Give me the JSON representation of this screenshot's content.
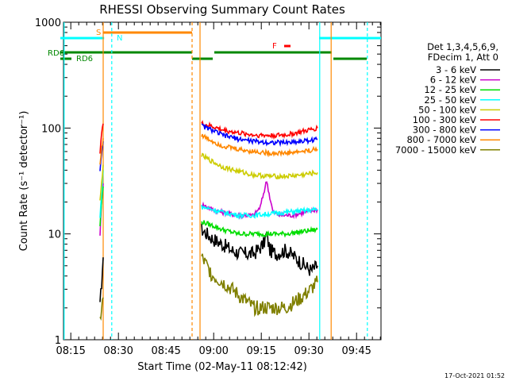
{
  "chart_data": {
    "type": "line",
    "title": "RHESSI Observing Summary Count Rates",
    "xlabel": "Start Time (02-May-11 08:12:42)",
    "ylabel": "Count Rate (s⁻¹ detector⁻¹)",
    "yscale": "log",
    "ylim": [
      1,
      1000
    ],
    "xlim_minutes": [
      0,
      100
    ],
    "x_ticks": [
      {
        "label": "08:15",
        "t": 2.3
      },
      {
        "label": "08:30",
        "t": 17.3
      },
      {
        "label": "08:45",
        "t": 32.3
      },
      {
        "label": "09:00",
        "t": 47.3
      },
      {
        "label": "09:15",
        "t": 62.3
      },
      {
        "label": "09:30",
        "t": 77.3
      },
      {
        "label": "09:45",
        "t": 92.3
      }
    ],
    "y_ticks": [
      {
        "label": "1",
        "v": 1
      },
      {
        "label": "10",
        "v": 10
      },
      {
        "label": "100",
        "v": 100
      },
      {
        "label": "1000",
        "v": 1000
      }
    ],
    "legend": {
      "header": [
        "Det 1,3,4,5,6,9,",
        "FDecim 1, Att 0"
      ],
      "position": "right"
    },
    "series": [
      {
        "name": "3 - 6 keV",
        "color": "#000000",
        "seg1": {
          "t": [
            11.5,
            12.0,
            12.5
          ],
          "v": [
            2.0,
            3.5,
            6.0
          ]
        },
        "seg2": {
          "t": [
            43.5,
            47,
            50,
            53,
            56,
            60,
            63,
            64,
            65,
            67,
            70,
            73,
            76,
            78,
            80
          ],
          "v": [
            11,
            9,
            8,
            7,
            6.5,
            6.5,
            8,
            10,
            7,
            6.5,
            7,
            6,
            5,
            4.5,
            5
          ]
        }
      },
      {
        "name": "6 - 12 keV",
        "color": "#cc00cc",
        "seg1": {
          "t": [
            11.5,
            12.0,
            12.5
          ],
          "v": [
            10,
            20,
            30
          ]
        },
        "seg2": {
          "t": [
            43.5,
            47,
            50,
            55,
            60,
            62,
            64,
            65,
            66,
            68,
            72,
            76,
            80
          ],
          "v": [
            19,
            17,
            16,
            15,
            15,
            18,
            32,
            22,
            16,
            15,
            15,
            16,
            17
          ]
        }
      },
      {
        "name": "12 - 25 keV",
        "color": "#00dd00",
        "seg1": {
          "t": [
            11.5,
            12.0,
            12.5
          ],
          "v": [
            12,
            20,
            28
          ]
        },
        "seg2": {
          "t": [
            43.5,
            47,
            50,
            55,
            60,
            65,
            70,
            75,
            80
          ],
          "v": [
            13,
            12,
            11,
            10,
            10,
            10,
            10,
            10.5,
            11
          ]
        }
      },
      {
        "name": "25 - 50 keV",
        "color": "#00ffff",
        "seg1": {
          "t": [
            11.5,
            12.0,
            12.5
          ],
          "v": [
            14,
            25,
            40
          ]
        },
        "seg2": {
          "t": [
            43.5,
            47,
            50,
            55,
            60,
            65,
            70,
            75,
            80
          ],
          "v": [
            18,
            17,
            16,
            15,
            15,
            15.5,
            16,
            16.5,
            17
          ]
        }
      },
      {
        "name": "50 - 100 keV",
        "color": "#cccc00",
        "seg1": {
          "t": [
            11.5,
            12.0,
            12.5
          ],
          "v": [
            20,
            30,
            45
          ]
        },
        "seg2": {
          "t": [
            43.5,
            47,
            50,
            55,
            60,
            65,
            70,
            75,
            80
          ],
          "v": [
            55,
            48,
            43,
            39,
            36,
            35,
            35,
            36,
            38
          ]
        }
      },
      {
        "name": "100 - 300 keV",
        "color": "#ff0000",
        "seg1": {
          "t": [
            11.5,
            12.0,
            12.5
          ],
          "v": [
            60,
            90,
            110
          ]
        },
        "seg2": {
          "t": [
            43.5,
            47,
            50,
            55,
            60,
            65,
            70,
            75,
            80
          ],
          "v": [
            110,
            103,
            96,
            90,
            86,
            85,
            86,
            92,
            100
          ]
        }
      },
      {
        "name": "300 - 800 keV",
        "color": "#0000ff",
        "seg1": {
          "t": [
            11.5,
            12.0,
            12.5
          ],
          "v": [
            40,
            60,
            75
          ]
        },
        "seg2": {
          "t": [
            43.5,
            47,
            50,
            55,
            60,
            65,
            70,
            75,
            80
          ],
          "v": [
            105,
            95,
            86,
            79,
            75,
            73,
            73,
            75,
            78
          ]
        }
      },
      {
        "name": "800 - 7000 keV",
        "color": "#ff8800",
        "seg1": {
          "t": [
            11.5,
            12.0,
            12.5
          ],
          "v": [
            45,
            65,
            80
          ]
        },
        "seg2": {
          "t": [
            43.5,
            47,
            50,
            55,
            60,
            65,
            70,
            75,
            80
          ],
          "v": [
            85,
            75,
            68,
            63,
            60,
            58,
            58,
            60,
            63
          ]
        }
      },
      {
        "name": "7000 - 15000 keV",
        "color": "#808000",
        "seg1": {
          "t": [
            11.5,
            12.0,
            12.5
          ],
          "v": [
            1.5,
            2.0,
            2.5
          ]
        },
        "seg2": {
          "t": [
            43.5,
            47,
            50,
            53,
            56,
            60,
            65,
            70,
            75,
            78,
            80
          ],
          "v": [
            6,
            4,
            3.5,
            3,
            2.5,
            2,
            2,
            2,
            2.5,
            3,
            3.5
          ]
        }
      }
    ],
    "annotations": [
      {
        "label": "S",
        "color": "#ff8800"
      },
      {
        "label": "N",
        "color": "#00ffff"
      },
      {
        "label": "RD6",
        "color": "#008800"
      },
      {
        "label": "RD6",
        "color": "#008800"
      },
      {
        "label": "F",
        "color": "#ff0000"
      }
    ],
    "timestamp": "17-Oct-2021 01:52"
  }
}
